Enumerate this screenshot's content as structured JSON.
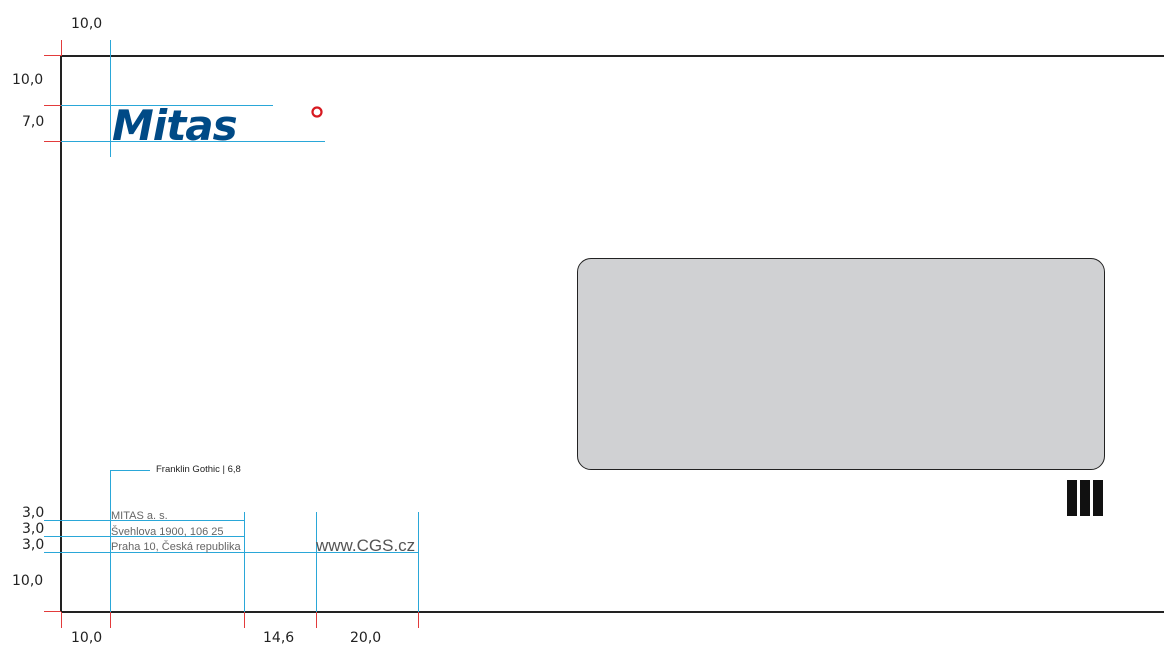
{
  "brand": {
    "logo_text": "Mitas",
    "logo_color": "#004a86",
    "logo_accent": "#d71920"
  },
  "dimensions": {
    "top_left": "10,0",
    "left_top": "10,0",
    "left_logo": "7,0",
    "left_line1": "3,0",
    "left_line2": "3,0",
    "left_line3": "3,0",
    "left_bottom": "10,0",
    "bottom_1": "10,0",
    "bottom_2": "14,6",
    "bottom_3": "20,0"
  },
  "font_note": "Franklin Gothic | 6,8",
  "address": {
    "line1": "MITAS a. s.",
    "line2": "Švehlova 1900, 106 25",
    "line3": "Praha 10, Česká republika"
  },
  "website": "www.CGS.cz",
  "colors": {
    "guide_blue": "#2aa7d8",
    "guide_red": "#e23b3b",
    "window_fill": "#d0d1d3"
  }
}
